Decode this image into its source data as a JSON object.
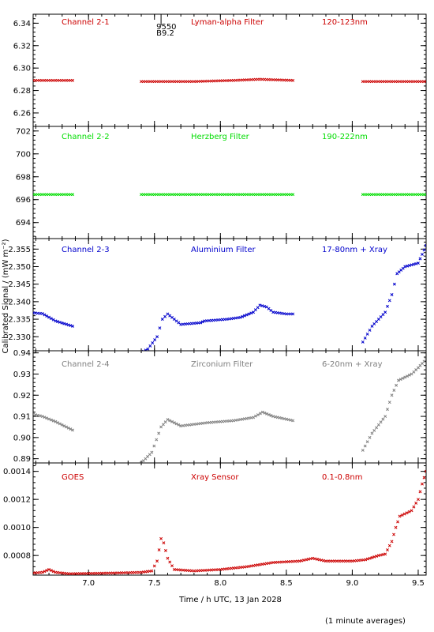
{
  "xlabel": "Time / h UTC, 13 Jan 2028",
  "ylabel": "Calibrated Signal / (mW m⁻²)",
  "footnote": "(1 minute averages)",
  "chart_data": [
    {
      "type": "scatter",
      "labels": {
        "channel": "Channel 2-1",
        "filter": "Lyman-alpha Filter",
        "band": "120-123nm"
      },
      "color": "#cc0000",
      "xlim": [
        6.58,
        9.56
      ],
      "ylim": [
        6.248,
        6.348
      ],
      "yticks": [
        6.26,
        6.28,
        6.3,
        6.32,
        6.34
      ],
      "ytick_labels": [
        "6.26",
        "6.28",
        "6.30",
        "6.32",
        "6.34"
      ],
      "marker_note": {
        "line1": "9550",
        "line2": "B9.2",
        "x": 7.55
      },
      "series": [
        {
          "segments": [
            {
              "points": [
                [
                  6.58,
                  6.289
                ],
                [
                  6.88,
                  6.289
                ]
              ]
            },
            {
              "points": [
                [
                  7.4,
                  6.288
                ],
                [
                  7.8,
                  6.288
                ],
                [
                  8.1,
                  6.289
                ],
                [
                  8.3,
                  6.29
                ],
                [
                  8.55,
                  6.289
                ]
              ]
            },
            {
              "points": [
                [
                  9.08,
                  6.288
                ],
                [
                  9.56,
                  6.288
                ]
              ]
            }
          ]
        }
      ]
    },
    {
      "type": "scatter",
      "labels": {
        "channel": "Channel 2-2",
        "filter": "Herzberg Filter",
        "band": "190-222nm"
      },
      "color": "#00dd00",
      "xlim": [
        6.58,
        9.56
      ],
      "ylim": [
        692.6,
        702.4
      ],
      "yticks": [
        694,
        696,
        698,
        700,
        702
      ],
      "ytick_labels": [
        "694",
        "696",
        "698",
        "700",
        "702"
      ],
      "series": [
        {
          "segments": [
            {
              "points": [
                [
                  6.58,
                  696.45
                ],
                [
                  6.88,
                  696.45
                ]
              ]
            },
            {
              "points": [
                [
                  7.4,
                  696.45
                ],
                [
                  8.55,
                  696.45
                ]
              ]
            },
            {
              "points": [
                [
                  9.08,
                  696.45
                ],
                [
                  9.56,
                  696.45
                ]
              ]
            }
          ]
        }
      ]
    },
    {
      "type": "scatter",
      "labels": {
        "channel": "Channel 2-3",
        "filter": "Aluminium Filter",
        "band": "17-80nm + Xray"
      },
      "color": "#0000cc",
      "xlim": [
        6.58,
        9.56
      ],
      "ylim": [
        2.326,
        2.358
      ],
      "yticks": [
        2.33,
        2.335,
        2.34,
        2.345,
        2.35,
        2.355
      ],
      "ytick_labels": [
        "2.330",
        "2.335",
        "2.340",
        "2.345",
        "2.350",
        "2.355"
      ],
      "series": [
        {
          "segments": [
            {
              "points": [
                [
                  6.58,
                  2.3368
                ],
                [
                  6.65,
                  2.3366
                ],
                [
                  6.75,
                  2.3345
                ],
                [
                  6.88,
                  2.333
                ]
              ]
            },
            {
              "points": [
                [
                  7.4,
                  2.3255
                ],
                [
                  7.45,
                  2.3265
                ],
                [
                  7.52,
                  2.33
                ],
                [
                  7.56,
                  2.335
                ],
                [
                  7.6,
                  2.3365
                ],
                [
                  7.7,
                  2.3335
                ],
                [
                  7.85,
                  2.334
                ],
                [
                  7.88,
                  2.3345
                ],
                [
                  8.05,
                  2.335
                ],
                [
                  8.15,
                  2.3355
                ],
                [
                  8.25,
                  2.337
                ],
                [
                  8.3,
                  2.339
                ],
                [
                  8.35,
                  2.3385
                ],
                [
                  8.4,
                  2.337
                ],
                [
                  8.5,
                  2.3365
                ],
                [
                  8.55,
                  2.3365
                ]
              ]
            },
            {
              "points": [
                [
                  9.08,
                  2.3285
                ],
                [
                  9.15,
                  2.333
                ],
                [
                  9.25,
                  2.337
                ],
                [
                  9.3,
                  2.342
                ],
                [
                  9.34,
                  2.348
                ],
                [
                  9.4,
                  2.35
                ],
                [
                  9.5,
                  2.351
                ],
                [
                  9.56,
                  2.356
                ]
              ]
            }
          ]
        }
      ]
    },
    {
      "type": "scatter",
      "labels": {
        "channel": "Channel 2-4",
        "filter": "Zirconium Filter",
        "band": "6-20nm + Xray"
      },
      "color": "#808080",
      "xlim": [
        6.58,
        9.56
      ],
      "ylim": [
        0.888,
        0.941
      ],
      "yticks": [
        0.89,
        0.9,
        0.91,
        0.92,
        0.93,
        0.94
      ],
      "ytick_labels": [
        "0.89",
        "0.90",
        "0.91",
        "0.92",
        "0.93",
        "0.94"
      ],
      "series": [
        {
          "segments": [
            {
              "points": [
                [
                  6.58,
                  0.911
                ],
                [
                  6.65,
                  0.91
                ],
                [
                  6.75,
                  0.9075
                ],
                [
                  6.88,
                  0.9035
                ]
              ]
            },
            {
              "points": [
                [
                  7.4,
                  0.888
                ],
                [
                  7.48,
                  0.893
                ],
                [
                  7.55,
                  0.905
                ],
                [
                  7.6,
                  0.9085
                ],
                [
                  7.7,
                  0.9055
                ],
                [
                  7.9,
                  0.907
                ],
                [
                  8.1,
                  0.908
                ],
                [
                  8.25,
                  0.9095
                ],
                [
                  8.32,
                  0.912
                ],
                [
                  8.4,
                  0.91
                ],
                [
                  8.55,
                  0.908
                ]
              ]
            },
            {
              "points": [
                [
                  9.08,
                  0.894
                ],
                [
                  9.15,
                  0.902
                ],
                [
                  9.25,
                  0.91
                ],
                [
                  9.3,
                  0.92
                ],
                [
                  9.35,
                  0.927
                ],
                [
                  9.45,
                  0.93
                ],
                [
                  9.5,
                  0.933
                ],
                [
                  9.56,
                  0.937
                ]
              ]
            }
          ]
        }
      ]
    },
    {
      "type": "scatter",
      "labels": {
        "channel": "GOES",
        "filter": "Xray Sensor",
        "band": "0.1-0.8nm"
      },
      "color": "#cc0000",
      "xlim": [
        6.58,
        9.56
      ],
      "ylim": [
        0.00066,
        0.00146
      ],
      "yticks": [
        0.0008,
        0.001,
        0.0012,
        0.0014
      ],
      "ytick_labels": [
        "0.0008",
        "0.0010",
        "0.0012",
        "0.0014"
      ],
      "series": [
        {
          "segments": [
            {
              "points": [
                [
                  6.58,
                  0.000675
                ],
                [
                  6.65,
                  0.00068
                ],
                [
                  6.7,
                  0.0007
                ],
                [
                  6.75,
                  0.00068
                ],
                [
                  6.85,
                  0.00067
                ],
                [
                  7.0,
                  0.000672
                ],
                [
                  7.2,
                  0.000675
                ],
                [
                  7.4,
                  0.00068
                ],
                [
                  7.48,
                  0.00069
                ],
                [
                  7.52,
                  0.00076
                ],
                [
                  7.55,
                  0.00092
                ],
                [
                  7.57,
                  0.00089
                ],
                [
                  7.6,
                  0.00078
                ],
                [
                  7.65,
                  0.0007
                ],
                [
                  7.8,
                  0.00069
                ],
                [
                  8.0,
                  0.0007
                ],
                [
                  8.2,
                  0.00072
                ],
                [
                  8.4,
                  0.00075
                ],
                [
                  8.6,
                  0.00076
                ],
                [
                  8.7,
                  0.00078
                ],
                [
                  8.8,
                  0.00076
                ],
                [
                  9.0,
                  0.00076
                ],
                [
                  9.1,
                  0.00077
                ],
                [
                  9.2,
                  0.0008
                ],
                [
                  9.25,
                  0.00081
                ],
                [
                  9.3,
                  0.0009
                ],
                [
                  9.33,
                  0.001
                ],
                [
                  9.36,
                  0.00108
                ],
                [
                  9.45,
                  0.00112
                ],
                [
                  9.5,
                  0.0012
                ],
                [
                  9.53,
                  0.00131
                ],
                [
                  9.56,
                  0.0014
                ]
              ]
            }
          ]
        }
      ]
    }
  ],
  "xaxis": {
    "ticks": [
      7.0,
      7.5,
      8.0,
      8.5,
      9.0,
      9.5
    ],
    "tick_labels": [
      "7.0",
      "7.5",
      "8.0",
      "8.5",
      "9.0",
      "9.5"
    ],
    "minor_step": 0.1
  }
}
